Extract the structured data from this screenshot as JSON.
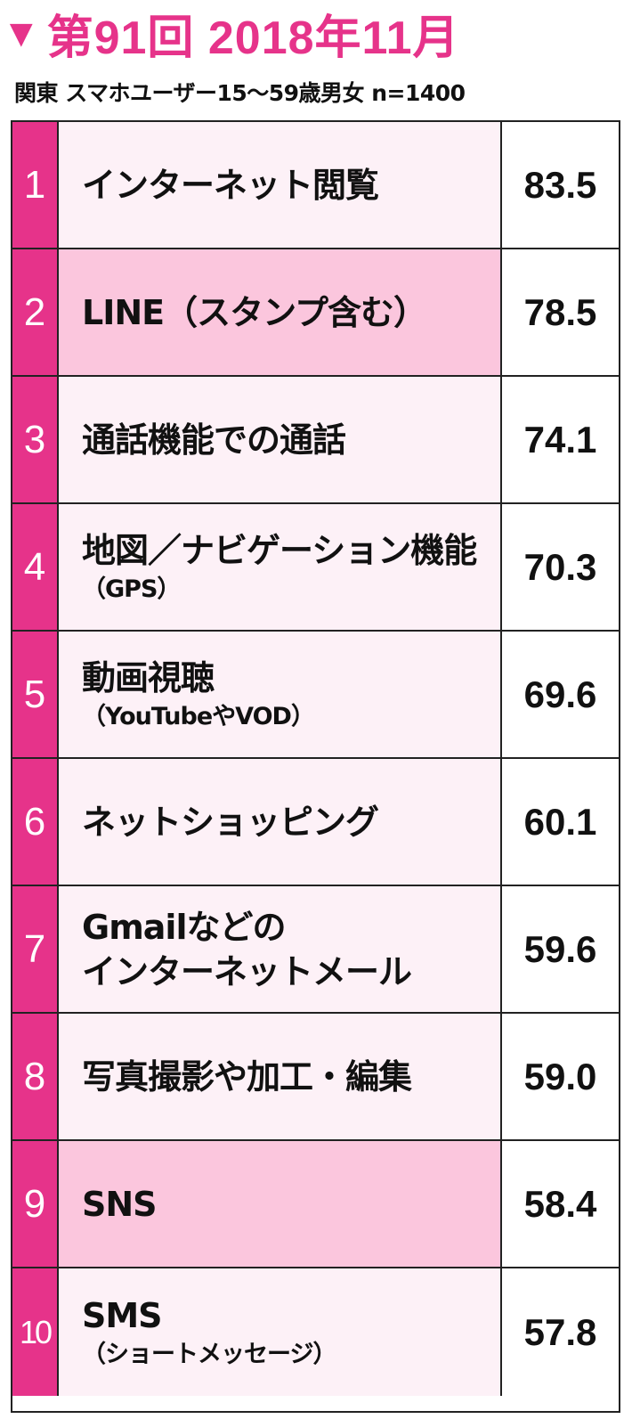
{
  "header": {
    "marker": "▼",
    "title": "第91回  2018年11月",
    "subtitle": "関東 スマホユーザー15〜59歳男女 n=1400"
  },
  "colors": {
    "accent": "#e6338a",
    "row_background": "#fdf1f7",
    "highlight_background": "#fbc6dd"
  },
  "chart_data": {
    "type": "table",
    "title": "第91回  2018年11月",
    "subtitle": "関東 スマホユーザー15〜59歳男女 n=1400",
    "columns": [
      "rank",
      "item",
      "value"
    ],
    "rows": [
      {
        "rank": "1",
        "line1": "インターネット閲覧",
        "line2": "",
        "value": "83.5",
        "highlight": false
      },
      {
        "rank": "2",
        "line1": "LINE（スタンプ含む）",
        "line2": "",
        "value": "78.5",
        "highlight": true
      },
      {
        "rank": "3",
        "line1": "通話機能での通話",
        "line2": "",
        "value": "74.1",
        "highlight": false
      },
      {
        "rank": "4",
        "line1": "地図／ナビゲーション機能",
        "line2": "（GPS）",
        "value": "70.3",
        "highlight": false
      },
      {
        "rank": "5",
        "line1": "動画視聴",
        "line2": "（YouTubeやVOD）",
        "value": "69.6",
        "highlight": false
      },
      {
        "rank": "6",
        "line1": "ネットショッピング",
        "line2": "",
        "value": "60.1",
        "highlight": false
      },
      {
        "rank": "7",
        "line1": "Gmailなどの",
        "line2": "インターネットメール",
        "value": "59.6",
        "highlight": false,
        "line2_large": true
      },
      {
        "rank": "8",
        "line1": "写真撮影や加工・編集",
        "line2": "",
        "value": "59.0",
        "highlight": false
      },
      {
        "rank": "9",
        "line1": "SNS",
        "line2": "",
        "value": "58.4",
        "highlight": true
      },
      {
        "rank": "10",
        "line1": "SMS",
        "line2": "（ショートメッセージ）",
        "value": "57.8",
        "highlight": false
      }
    ]
  }
}
